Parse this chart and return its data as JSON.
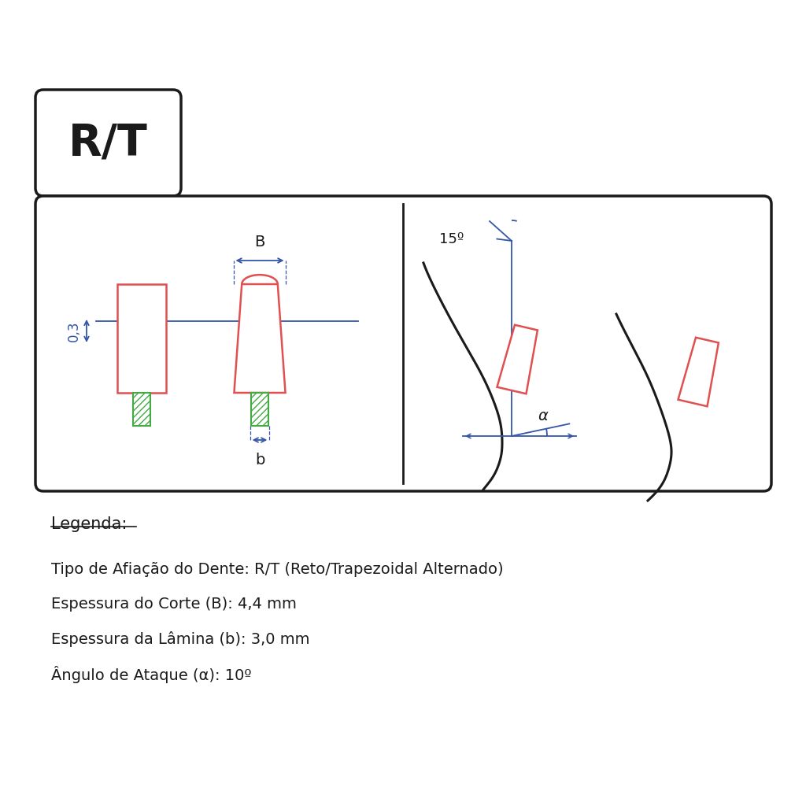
{
  "bg_color": "#ffffff",
  "border_color": "#1a1a1a",
  "rt_label": "R/T",
  "red_color": "#e05050",
  "blue_color": "#3355aa",
  "green_color": "#44aa44",
  "black_color": "#1a1a1a",
  "dim_label_B": "B",
  "dim_label_b": "b",
  "dim_label_03": "0,3",
  "dim_label_15": "15º",
  "dim_label_alpha": "α",
  "legend_title": "Legenda:",
  "legend_lines": [
    "Tipo de Afiação do Dente: R/T (Reto/Trapezoidal Alternado)",
    "Espessura do Corte (B): 4,4 mm",
    "Espessura da Lâmina (b): 3,0 mm",
    "Ângulo de Ataque (α): 10º"
  ]
}
